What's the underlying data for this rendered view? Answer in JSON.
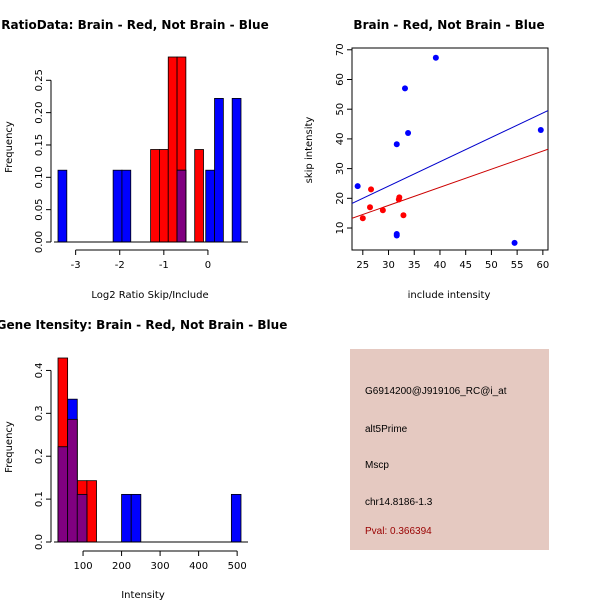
{
  "chart_data": [
    {
      "type": "bar",
      "subtype": "overlaid-histogram",
      "title": "RatioData: Brain - Red, Not Brain - Blue",
      "xlabel": "Log2 Ratio Skip/Include",
      "ylabel": "Frequency",
      "xticks": [
        -3,
        -2,
        -1,
        0
      ],
      "yticks": [
        "0.00",
        "0.05",
        "0.10",
        "0.15",
        "0.20",
        "0.25"
      ],
      "xlim": [
        -3.4,
        0.75
      ],
      "ylim": [
        0,
        0.286
      ],
      "series": [
        {
          "name": "Brain",
          "color": "#ff0000",
          "bins": [
            [
              -1.3,
              -1.1,
              0.143
            ],
            [
              -1.1,
              -0.9,
              0.143
            ],
            [
              -0.9,
              -0.7,
              0.286
            ],
            [
              -0.7,
              -0.5,
              0.286
            ],
            [
              -0.3,
              -0.1,
              0.143
            ]
          ]
        },
        {
          "name": "Not Brain",
          "color": "#0000ff",
          "bins": [
            [
              -3.4,
              -3.2,
              0.111
            ],
            [
              -2.15,
              -1.95,
              0.111
            ],
            [
              -1.95,
              -1.75,
              0.111
            ],
            [
              -0.7,
              -0.5,
              0.111
            ],
            [
              -0.05,
              0.15,
              0.111
            ],
            [
              0.15,
              0.35,
              0.222
            ],
            [
              0.55,
              0.75,
              0.222
            ]
          ]
        }
      ],
      "overlap_color": "#800080"
    },
    {
      "type": "scatter",
      "title": "Brain - Red, Not Brain - Blue",
      "xlabel": "include intensity",
      "ylabel": "skip intensity",
      "xticks": [
        25,
        30,
        35,
        40,
        45,
        50,
        55,
        60
      ],
      "yticks": [
        10,
        20,
        30,
        40,
        50,
        60,
        70
      ],
      "xlim": [
        22.9,
        61
      ],
      "ylim": [
        2.6,
        70.6
      ],
      "series": [
        {
          "name": "Brain",
          "color": "#ff0000",
          "points": [
            [
              25.0,
              13.3
            ],
            [
              26.6,
              23.0
            ],
            [
              26.4,
              17.0
            ],
            [
              28.9,
              16.0
            ],
            [
              32.1,
              20.3
            ],
            [
              32.0,
              19.6
            ],
            [
              32.9,
              14.3
            ]
          ],
          "fit": {
            "slope": 0.61,
            "intercept": -0.7,
            "color": "#cc0000"
          }
        },
        {
          "name": "Not Brain",
          "color": "#0000ff",
          "points": [
            [
              24.0,
              24.1
            ],
            [
              31.6,
              38.2
            ],
            [
              31.6,
              8.0
            ],
            [
              31.6,
              7.5
            ],
            [
              33.2,
              57.0
            ],
            [
              33.8,
              42.0
            ],
            [
              39.2,
              67.3
            ],
            [
              54.5,
              5.0
            ],
            [
              59.6,
              43.0
            ]
          ],
          "fit": {
            "slope": 0.82,
            "intercept": -0.5,
            "color": "#0000cc"
          }
        }
      ]
    },
    {
      "type": "bar",
      "subtype": "overlaid-histogram",
      "title": "Gene Itensity: Brain - Red, Not Brain - Blue",
      "xlabel": "Intensity",
      "ylabel": "Frequency",
      "xticks": [
        100,
        200,
        300,
        400,
        500
      ],
      "yticks": [
        "0.0",
        "0.1",
        "0.2",
        "0.3",
        "0.4"
      ],
      "xlim": [
        35,
        510
      ],
      "ylim": [
        0,
        0.429
      ],
      "series": [
        {
          "name": "Brain",
          "color": "#ff0000",
          "bins": [
            [
              35,
              60,
              0.429
            ],
            [
              60,
              85,
              0.286
            ],
            [
              85,
              110,
              0.143
            ],
            [
              110,
              135,
              0.143
            ]
          ]
        },
        {
          "name": "Not Brain",
          "color": "#0000ff",
          "bins": [
            [
              35,
              60,
              0.222
            ],
            [
              60,
              85,
              0.333
            ],
            [
              85,
              110,
              0.111
            ],
            [
              200,
              225,
              0.111
            ],
            [
              225,
              250,
              0.111
            ],
            [
              485,
              510,
              0.111
            ]
          ]
        }
      ],
      "overlap_color": "#800080"
    }
  ],
  "info": {
    "probe": "G6914200@J919106_RC@i_at",
    "event_type": "alt5Prime",
    "gene": "Mscp",
    "location": "chr14.8186-1.3",
    "pval": "Pval: 0.366394",
    "pval_color": "#990000",
    "background": "#e5c9c1"
  }
}
